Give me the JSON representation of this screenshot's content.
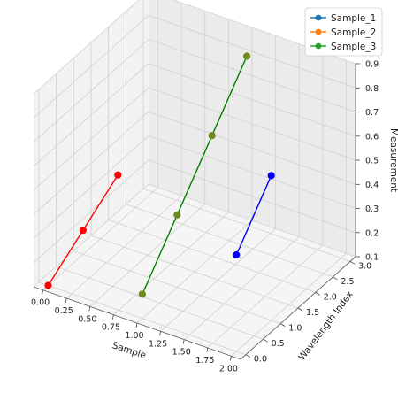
{
  "chart_data": {
    "type": "line3d",
    "title": "",
    "xlabel": "Sample",
    "ylabel": "Wavelength Index",
    "zlabel": "Measurement",
    "xticks": [
      "0.00",
      "0.25",
      "0.50",
      "0.75",
      "1.00",
      "1.25",
      "1.50",
      "1.75",
      "2.00"
    ],
    "yticks": [
      "0.0",
      "0.5",
      "1.0",
      "1.5",
      "2.0",
      "2.5",
      "3.0"
    ],
    "zticks": [
      "0.1",
      "0.2",
      "0.3",
      "0.4",
      "0.5",
      "0.6",
      "0.7",
      "0.8",
      "0.9"
    ],
    "xlim": [
      -0.1,
      2.1
    ],
    "ylim": [
      -0.15,
      3.15
    ],
    "zlim": [
      0.1,
      0.9
    ],
    "grid": true,
    "legend": {
      "position": "top-right",
      "entries": [
        {
          "label": "Sample_1",
          "color": "#1f77b4"
        },
        {
          "label": "Sample_2",
          "color": "#ff7f0e"
        },
        {
          "label": "Sample_3",
          "color": "#2ca02c"
        }
      ]
    },
    "series": [
      {
        "x": [
          0,
          0,
          0
        ],
        "y": [
          0,
          1,
          2
        ],
        "z": [
          0.1,
          0.2,
          0.3
        ],
        "line_color": "#ff0000",
        "marker_color": "#ff0000"
      },
      {
        "x": [
          1,
          1,
          1,
          1
        ],
        "y": [
          0,
          1,
          2,
          3
        ],
        "z": [
          0.2,
          0.4,
          0.6,
          0.8
        ],
        "line_color": "#008000",
        "marker_color": "#6e8a1e"
      },
      {
        "x": [
          2,
          2
        ],
        "y": [
          0,
          1
        ],
        "z": [
          0.5,
          0.7
        ],
        "line_color": "#0000ff",
        "marker_color": "#0000ff"
      }
    ]
  }
}
